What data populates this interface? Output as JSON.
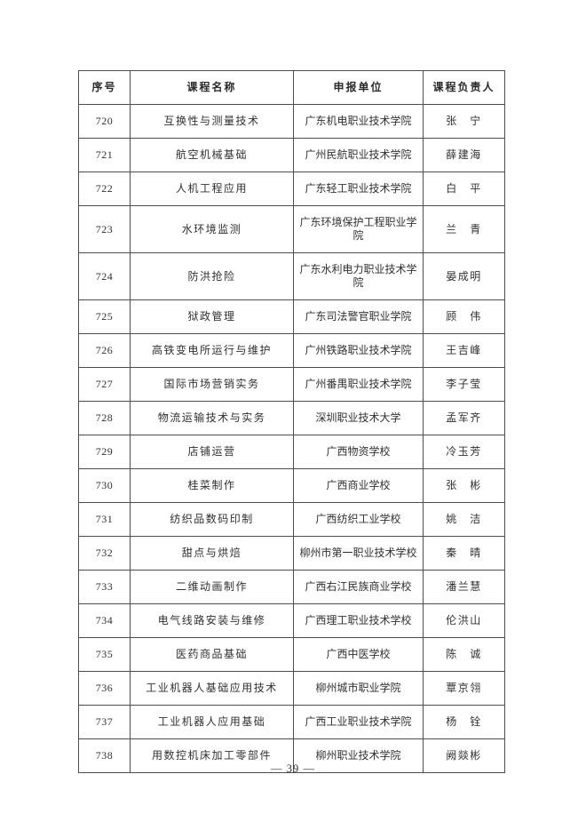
{
  "page": {
    "page_number": "— 39 —"
  },
  "table": {
    "headers": [
      "序号",
      "课程名称",
      "申报单位",
      "课程负责人"
    ],
    "rows": [
      {
        "seq": "720",
        "course": "互换性与测量技术",
        "unit": "广东机电职业技术学院",
        "leader": "张　宁"
      },
      {
        "seq": "721",
        "course": "航空机械基础",
        "unit": "广州民航职业技术学院",
        "leader": "薛建海"
      },
      {
        "seq": "722",
        "course": "人机工程应用",
        "unit": "广东轻工职业技术学院",
        "leader": "白　平"
      },
      {
        "seq": "723",
        "course": "水环境监测",
        "unit": "广东环境保护工程职业学院",
        "leader": "兰　青"
      },
      {
        "seq": "724",
        "course": "防洪抢险",
        "unit": "广东水利电力职业技术学院",
        "leader": "晏成明"
      },
      {
        "seq": "725",
        "course": "狱政管理",
        "unit": "广东司法警官职业学院",
        "leader": "顾　伟"
      },
      {
        "seq": "726",
        "course": "高铁变电所运行与维护",
        "unit": "广州铁路职业技术学院",
        "leader": "王吉峰"
      },
      {
        "seq": "727",
        "course": "国际市场营销实务",
        "unit": "广州番禺职业技术学院",
        "leader": "李子莹"
      },
      {
        "seq": "728",
        "course": "物流运输技术与实务",
        "unit": "深圳职业技术大学",
        "leader": "孟军齐"
      },
      {
        "seq": "729",
        "course": "店铺运营",
        "unit": "广西物资学校",
        "leader": "冷玉芳"
      },
      {
        "seq": "730",
        "course": "桂菜制作",
        "unit": "广西商业学校",
        "leader": "张　彬"
      },
      {
        "seq": "731",
        "course": "纺织品数码印制",
        "unit": "广西纺织工业学校",
        "leader": "姚　洁"
      },
      {
        "seq": "732",
        "course": "甜点与烘焙",
        "unit": "柳州市第一职业技术学校",
        "leader": "秦　晴"
      },
      {
        "seq": "733",
        "course": "二维动画制作",
        "unit": "广西右江民族商业学校",
        "leader": "潘兰慧"
      },
      {
        "seq": "734",
        "course": "电气线路安装与维修",
        "unit": "广西理工职业技术学校",
        "leader": "伦洪山"
      },
      {
        "seq": "735",
        "course": "医药商品基础",
        "unit": "广西中医学校",
        "leader": "陈　诚"
      },
      {
        "seq": "736",
        "course": "工业机器人基础应用技术",
        "unit": "柳州城市职业学院",
        "leader": "覃京翎"
      },
      {
        "seq": "737",
        "course": "工业机器人应用基础",
        "unit": "广西工业职业技术学院",
        "leader": "杨　铨"
      },
      {
        "seq": "738",
        "course": "用数控机床加工零部件",
        "unit": "柳州职业技术学院",
        "leader": "阙燚彬"
      }
    ]
  }
}
